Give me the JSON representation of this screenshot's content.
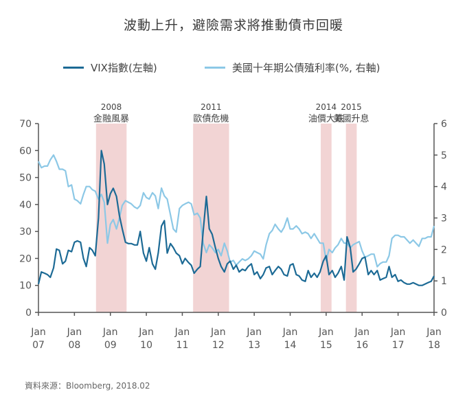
{
  "title": "波動上升，避險需求將推動債市回暖",
  "source": "資料來源：Bloomberg, 2018.02",
  "colors": {
    "vix": "#1c6a95",
    "yield": "#8cc8e6",
    "shade": "#f2d4d4",
    "axis": "#555555",
    "text": "#444444"
  },
  "chart_data": {
    "type": "line",
    "title": "波動上升，避險需求將推動債市回暖",
    "xlabel": "",
    "ylabel": "",
    "ylabel_right": "",
    "xlim": [
      2007.0,
      2018.0
    ],
    "ylim": [
      0,
      70
    ],
    "ylim_right": [
      0,
      6
    ],
    "yticks": [
      0,
      10,
      20,
      30,
      40,
      50,
      60,
      70
    ],
    "yticks_right": [
      0,
      1,
      2,
      3,
      4,
      5,
      6
    ],
    "xticks": [
      {
        "x": 2007.0,
        "line1": "Jan",
        "line2": "07"
      },
      {
        "x": 2008.0,
        "line1": "Jan",
        "line2": "08"
      },
      {
        "x": 2009.0,
        "line1": "Jan",
        "line2": "09"
      },
      {
        "x": 2010.0,
        "line1": "Jan",
        "line2": "10"
      },
      {
        "x": 2011.0,
        "line1": "Jan",
        "line2": "11"
      },
      {
        "x": 2012.0,
        "line1": "Jan",
        "line2": "12"
      },
      {
        "x": 2013.0,
        "line1": "Jan",
        "line2": "13"
      },
      {
        "x": 2014.0,
        "line1": "Jan",
        "line2": "14"
      },
      {
        "x": 2015.0,
        "line1": "Jan",
        "line2": "15"
      },
      {
        "x": 2016.0,
        "line1": "Jan",
        "line2": "16"
      },
      {
        "x": 2017.0,
        "line1": "Jan",
        "line2": "17"
      },
      {
        "x": 2018.0,
        "line1": "Jan",
        "line2": "18"
      }
    ],
    "events": [
      {
        "year": "2008",
        "label": "金融風暴",
        "start": 2008.6,
        "end": 2009.45
      },
      {
        "year": "2011",
        "label": "歐債危機",
        "start": 2011.3,
        "end": 2012.3
      },
      {
        "year": "2014",
        "label": "油價大跌",
        "start": 2014.85,
        "end": 2015.15
      },
      {
        "year": "2015",
        "label": "美國升息",
        "start": 2015.55,
        "end": 2015.85
      }
    ],
    "series": [
      {
        "name": "VIX指數(左軸)",
        "axis": "left",
        "color": "#1c6a95",
        "points": [
          [
            2007.0,
            10.5
          ],
          [
            2007.08,
            15.0
          ],
          [
            2007.17,
            14.5
          ],
          [
            2007.25,
            14.0
          ],
          [
            2007.33,
            13.0
          ],
          [
            2007.42,
            16.5
          ],
          [
            2007.5,
            23.5
          ],
          [
            2007.58,
            23.0
          ],
          [
            2007.67,
            18.0
          ],
          [
            2007.75,
            19.0
          ],
          [
            2007.83,
            23.0
          ],
          [
            2007.92,
            22.5
          ],
          [
            2008.0,
            26.0
          ],
          [
            2008.08,
            26.5
          ],
          [
            2008.17,
            26.0
          ],
          [
            2008.25,
            20.0
          ],
          [
            2008.33,
            17.0
          ],
          [
            2008.42,
            24.0
          ],
          [
            2008.5,
            23.0
          ],
          [
            2008.58,
            21.0
          ],
          [
            2008.67,
            35.0
          ],
          [
            2008.75,
            60.0
          ],
          [
            2008.83,
            55.0
          ],
          [
            2008.92,
            40.0
          ],
          [
            2009.0,
            44.0
          ],
          [
            2009.08,
            46.0
          ],
          [
            2009.17,
            43.0
          ],
          [
            2009.25,
            36.0
          ],
          [
            2009.33,
            31.0
          ],
          [
            2009.42,
            26.0
          ],
          [
            2009.5,
            25.5
          ],
          [
            2009.58,
            25.5
          ],
          [
            2009.67,
            25.0
          ],
          [
            2009.75,
            25.0
          ],
          [
            2009.83,
            30.0
          ],
          [
            2009.92,
            22.0
          ],
          [
            2010.0,
            19.0
          ],
          [
            2010.08,
            24.0
          ],
          [
            2010.17,
            18.0
          ],
          [
            2010.25,
            16.0
          ],
          [
            2010.33,
            22.0
          ],
          [
            2010.42,
            32.0
          ],
          [
            2010.5,
            34.0
          ],
          [
            2010.58,
            22.0
          ],
          [
            2010.67,
            25.5
          ],
          [
            2010.75,
            24.0
          ],
          [
            2010.83,
            22.0
          ],
          [
            2010.92,
            21.0
          ],
          [
            2011.0,
            18.0
          ],
          [
            2011.08,
            20.0
          ],
          [
            2011.17,
            18.5
          ],
          [
            2011.25,
            17.5
          ],
          [
            2011.33,
            14.5
          ],
          [
            2011.42,
            16.0
          ],
          [
            2011.5,
            17.0
          ],
          [
            2011.58,
            30.0
          ],
          [
            2011.67,
            43.0
          ],
          [
            2011.75,
            31.0
          ],
          [
            2011.83,
            29.0
          ],
          [
            2011.92,
            24.0
          ],
          [
            2012.0,
            20.0
          ],
          [
            2012.08,
            17.0
          ],
          [
            2012.17,
            15.0
          ],
          [
            2012.25,
            18.0
          ],
          [
            2012.33,
            19.0
          ],
          [
            2012.42,
            16.0
          ],
          [
            2012.5,
            17.5
          ],
          [
            2012.58,
            15.0
          ],
          [
            2012.67,
            16.0
          ],
          [
            2012.75,
            15.5
          ],
          [
            2012.83,
            17.0
          ],
          [
            2012.92,
            18.0
          ],
          [
            2013.0,
            14.0
          ],
          [
            2013.08,
            15.0
          ],
          [
            2013.17,
            12.5
          ],
          [
            2013.25,
            14.0
          ],
          [
            2013.33,
            16.5
          ],
          [
            2013.42,
            17.0
          ],
          [
            2013.5,
            14.0
          ],
          [
            2013.58,
            15.5
          ],
          [
            2013.67,
            17.0
          ],
          [
            2013.75,
            16.0
          ],
          [
            2013.83,
            14.0
          ],
          [
            2013.92,
            13.5
          ],
          [
            2014.0,
            17.5
          ],
          [
            2014.08,
            18.0
          ],
          [
            2014.17,
            14.0
          ],
          [
            2014.25,
            13.5
          ],
          [
            2014.33,
            12.0
          ],
          [
            2014.42,
            11.5
          ],
          [
            2014.5,
            15.5
          ],
          [
            2014.58,
            13.0
          ],
          [
            2014.67,
            14.5
          ],
          [
            2014.75,
            13.0
          ],
          [
            2014.83,
            15.0
          ],
          [
            2014.92,
            19.0
          ],
          [
            2015.0,
            21.0
          ],
          [
            2015.08,
            14.0
          ],
          [
            2015.17,
            15.5
          ],
          [
            2015.25,
            13.0
          ],
          [
            2015.33,
            14.5
          ],
          [
            2015.42,
            17.0
          ],
          [
            2015.5,
            12.0
          ],
          [
            2015.58,
            28.0
          ],
          [
            2015.67,
            24.0
          ],
          [
            2015.75,
            15.0
          ],
          [
            2015.83,
            16.0
          ],
          [
            2015.92,
            18.0
          ],
          [
            2016.0,
            20.0
          ],
          [
            2016.08,
            20.5
          ],
          [
            2016.17,
            14.0
          ],
          [
            2016.25,
            15.5
          ],
          [
            2016.33,
            14.0
          ],
          [
            2016.42,
            15.5
          ],
          [
            2016.5,
            12.0
          ],
          [
            2016.58,
            12.5
          ],
          [
            2016.67,
            13.0
          ],
          [
            2016.75,
            17.0
          ],
          [
            2016.83,
            13.0
          ],
          [
            2016.92,
            14.0
          ],
          [
            2017.0,
            11.5
          ],
          [
            2017.08,
            12.0
          ],
          [
            2017.17,
            11.0
          ],
          [
            2017.25,
            10.5
          ],
          [
            2017.33,
            10.5
          ],
          [
            2017.42,
            11.0
          ],
          [
            2017.5,
            10.5
          ],
          [
            2017.58,
            10.0
          ],
          [
            2017.67,
            10.0
          ],
          [
            2017.75,
            10.5
          ],
          [
            2017.83,
            11.0
          ],
          [
            2017.92,
            11.5
          ],
          [
            2018.0,
            13.5
          ]
        ]
      },
      {
        "name": "美國十年期公債殖利率(%, 右軸)",
        "axis": "right",
        "color": "#8cc8e6",
        "points": [
          [
            2007.0,
            4.8
          ],
          [
            2007.08,
            4.6
          ],
          [
            2007.17,
            4.65
          ],
          [
            2007.25,
            4.65
          ],
          [
            2007.33,
            4.85
          ],
          [
            2007.42,
            5.0
          ],
          [
            2007.5,
            4.8
          ],
          [
            2007.58,
            4.55
          ],
          [
            2007.67,
            4.55
          ],
          [
            2007.75,
            4.5
          ],
          [
            2007.83,
            4.0
          ],
          [
            2007.92,
            4.05
          ],
          [
            2008.0,
            3.6
          ],
          [
            2008.08,
            3.55
          ],
          [
            2008.17,
            3.45
          ],
          [
            2008.25,
            3.75
          ],
          [
            2008.33,
            4.0
          ],
          [
            2008.42,
            4.0
          ],
          [
            2008.5,
            3.9
          ],
          [
            2008.58,
            3.85
          ],
          [
            2008.67,
            3.6
          ],
          [
            2008.75,
            3.75
          ],
          [
            2008.83,
            3.5
          ],
          [
            2008.92,
            2.2
          ],
          [
            2009.0,
            2.8
          ],
          [
            2009.08,
            2.95
          ],
          [
            2009.17,
            2.65
          ],
          [
            2009.25,
            3.0
          ],
          [
            2009.33,
            3.4
          ],
          [
            2009.42,
            3.55
          ],
          [
            2009.5,
            3.5
          ],
          [
            2009.58,
            3.45
          ],
          [
            2009.67,
            3.35
          ],
          [
            2009.75,
            3.3
          ],
          [
            2009.83,
            3.4
          ],
          [
            2009.92,
            3.8
          ],
          [
            2010.0,
            3.65
          ],
          [
            2010.08,
            3.6
          ],
          [
            2010.17,
            3.8
          ],
          [
            2010.25,
            3.7
          ],
          [
            2010.33,
            3.3
          ],
          [
            2010.42,
            3.95
          ],
          [
            2010.5,
            3.7
          ],
          [
            2010.58,
            3.6
          ],
          [
            2010.67,
            3.1
          ],
          [
            2010.75,
            2.65
          ],
          [
            2010.83,
            2.55
          ],
          [
            2010.92,
            3.3
          ],
          [
            2011.0,
            3.4
          ],
          [
            2011.08,
            3.45
          ],
          [
            2011.17,
            3.5
          ],
          [
            2011.25,
            3.45
          ],
          [
            2011.33,
            3.1
          ],
          [
            2011.42,
            3.15
          ],
          [
            2011.5,
            3.0
          ],
          [
            2011.58,
            2.2
          ],
          [
            2011.67,
            1.9
          ],
          [
            2011.75,
            2.15
          ],
          [
            2011.83,
            2.05
          ],
          [
            2011.92,
            1.9
          ],
          [
            2012.0,
            2.0
          ],
          [
            2012.08,
            1.8
          ],
          [
            2012.17,
            2.2
          ],
          [
            2012.25,
            1.95
          ],
          [
            2012.33,
            1.6
          ],
          [
            2012.42,
            1.65
          ],
          [
            2012.5,
            1.5
          ],
          [
            2012.58,
            1.6
          ],
          [
            2012.67,
            1.7
          ],
          [
            2012.75,
            1.65
          ],
          [
            2012.83,
            1.7
          ],
          [
            2012.92,
            1.8
          ],
          [
            2013.0,
            1.95
          ],
          [
            2013.08,
            1.9
          ],
          [
            2013.17,
            1.85
          ],
          [
            2013.25,
            1.7
          ],
          [
            2013.33,
            2.15
          ],
          [
            2013.42,
            2.5
          ],
          [
            2013.5,
            2.6
          ],
          [
            2013.58,
            2.8
          ],
          [
            2013.67,
            2.65
          ],
          [
            2013.75,
            2.55
          ],
          [
            2013.83,
            2.7
          ],
          [
            2013.92,
            3.0
          ],
          [
            2014.0,
            2.65
          ],
          [
            2014.08,
            2.65
          ],
          [
            2014.17,
            2.75
          ],
          [
            2014.25,
            2.65
          ],
          [
            2014.33,
            2.5
          ],
          [
            2014.42,
            2.55
          ],
          [
            2014.5,
            2.5
          ],
          [
            2014.58,
            2.35
          ],
          [
            2014.67,
            2.5
          ],
          [
            2014.75,
            2.35
          ],
          [
            2014.83,
            2.2
          ],
          [
            2014.92,
            2.2
          ],
          [
            2015.0,
            1.65
          ],
          [
            2015.08,
            2.0
          ],
          [
            2015.17,
            1.9
          ],
          [
            2015.25,
            2.05
          ],
          [
            2015.33,
            2.15
          ],
          [
            2015.42,
            2.35
          ],
          [
            2015.5,
            2.2
          ],
          [
            2015.58,
            2.2
          ],
          [
            2015.67,
            2.05
          ],
          [
            2015.75,
            2.15
          ],
          [
            2015.83,
            2.2
          ],
          [
            2015.92,
            2.25
          ],
          [
            2016.0,
            1.95
          ],
          [
            2016.08,
            1.75
          ],
          [
            2016.17,
            1.8
          ],
          [
            2016.25,
            1.85
          ],
          [
            2016.33,
            1.85
          ],
          [
            2016.42,
            1.45
          ],
          [
            2016.5,
            1.55
          ],
          [
            2016.58,
            1.6
          ],
          [
            2016.67,
            1.6
          ],
          [
            2016.75,
            1.8
          ],
          [
            2016.83,
            2.35
          ],
          [
            2016.92,
            2.45
          ],
          [
            2017.0,
            2.45
          ],
          [
            2017.08,
            2.4
          ],
          [
            2017.17,
            2.4
          ],
          [
            2017.25,
            2.3
          ],
          [
            2017.33,
            2.2
          ],
          [
            2017.42,
            2.3
          ],
          [
            2017.5,
            2.2
          ],
          [
            2017.58,
            2.1
          ],
          [
            2017.67,
            2.35
          ],
          [
            2017.75,
            2.35
          ],
          [
            2017.83,
            2.4
          ],
          [
            2017.92,
            2.4
          ],
          [
            2018.0,
            2.75
          ]
        ]
      }
    ]
  }
}
